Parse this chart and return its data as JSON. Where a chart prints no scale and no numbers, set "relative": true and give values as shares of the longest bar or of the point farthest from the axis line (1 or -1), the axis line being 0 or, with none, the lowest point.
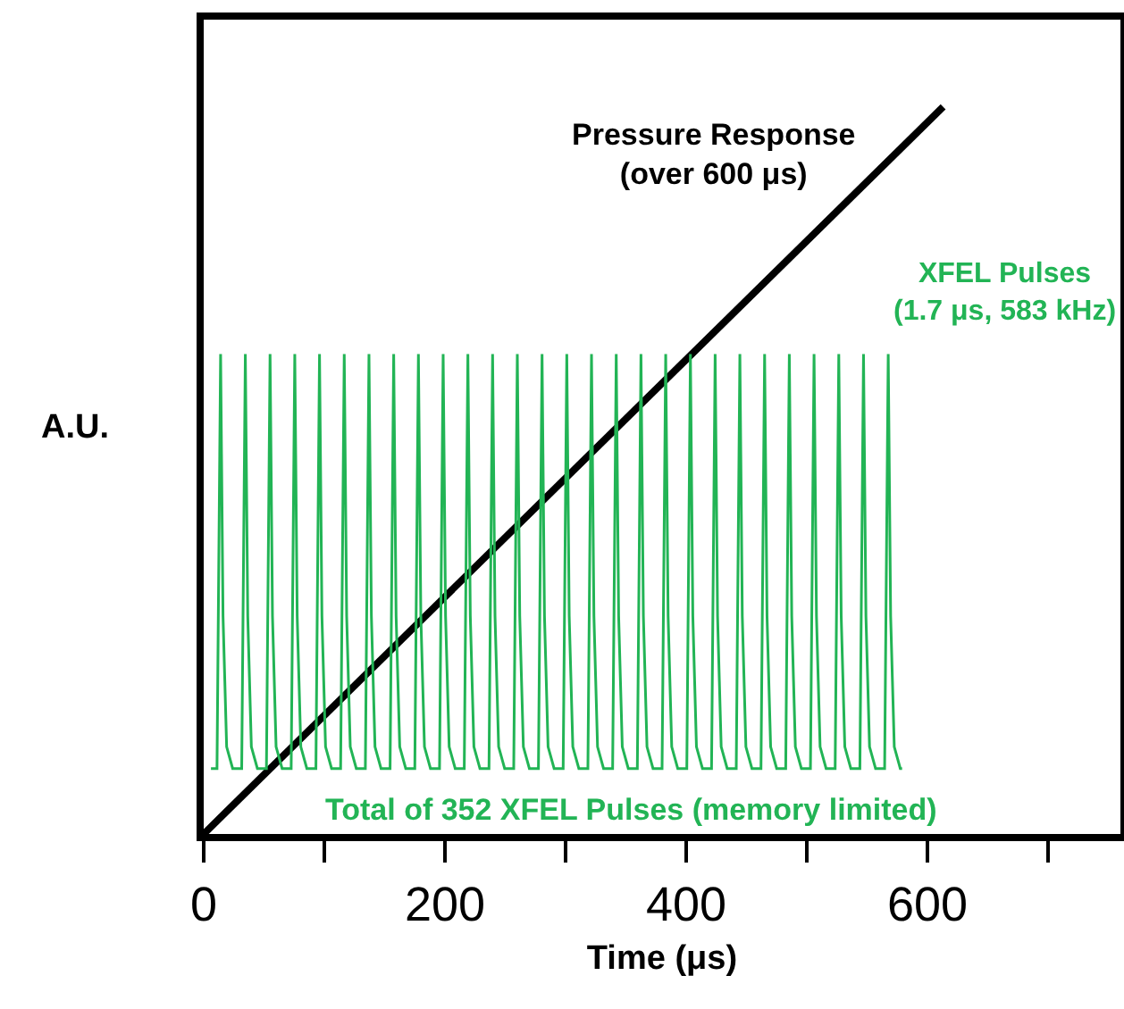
{
  "chart_data": {
    "type": "line",
    "relative": true,
    "xlabel": "Time (μs)",
    "ylabel": "A.U.",
    "xlim": [
      0,
      760
    ],
    "xticks": [
      0,
      {
        "value": 100,
        "label": null
      },
      200,
      {
        "value": 300,
        "label": null
      },
      400,
      {
        "value": 500,
        "label": null
      },
      600,
      {
        "value": 700,
        "label": null
      }
    ],
    "series": [
      {
        "name": "Pressure Response\n(over 600 μs)",
        "color": "#000000",
        "x": [
          0,
          613
        ],
        "values": [
          0,
          1
        ]
      },
      {
        "name": "XFEL Pulses\n(1.7 μs, 583 kHz)",
        "color": "#22b455",
        "x": [
          6,
          11,
          14,
          16,
          19,
          24,
          31.5,
          34.5,
          36.5,
          39.5,
          44.5,
          52,
          55,
          57,
          60,
          65,
          72.5,
          75.5,
          77.5,
          80.5,
          85.5,
          93,
          96,
          98,
          101,
          106,
          113.5,
          116.5,
          118.5,
          121.5,
          126.5,
          134,
          137,
          139,
          142,
          147,
          154.5,
          157.5,
          159.5,
          162.5,
          167.5,
          175,
          178,
          180,
          183,
          188,
          195.5,
          198.5,
          200.5,
          203.5,
          208.5,
          216,
          219,
          221,
          224,
          229,
          236.5,
          239.5,
          241.5,
          244.5,
          249.5,
          257,
          260,
          262,
          265,
          270,
          277.5,
          280.5,
          282.5,
          285.5,
          290.5,
          298,
          301,
          303,
          306,
          311,
          318.5,
          321.5,
          323.5,
          326.5,
          331.5,
          339,
          342,
          344,
          347,
          352,
          359.5,
          362.5,
          364.5,
          367.5,
          372.5,
          380,
          383,
          385,
          388,
          393,
          400.5,
          403.5,
          405.5,
          408.5,
          413.5,
          421,
          424,
          426,
          429,
          434,
          441.5,
          444.5,
          446.5,
          449.5,
          454.5,
          462,
          465,
          467,
          470,
          475,
          482.5,
          485.5,
          487.5,
          490.5,
          495.5,
          503,
          506,
          508,
          511,
          516,
          523.5,
          526.5,
          528.5,
          531.5,
          536.5,
          544,
          547,
          549,
          552,
          557,
          564.5,
          567.5,
          569.5,
          572.5,
          577.5,
          579
        ],
        "values": [
          0.09,
          0.09,
          0.66,
          0.3,
          0.12,
          0.09,
          0.09,
          0.66,
          0.3,
          0.12,
          0.09,
          0.09,
          0.66,
          0.3,
          0.12,
          0.09,
          0.09,
          0.66,
          0.3,
          0.12,
          0.09,
          0.09,
          0.66,
          0.3,
          0.12,
          0.09,
          0.09,
          0.66,
          0.3,
          0.12,
          0.09,
          0.09,
          0.66,
          0.3,
          0.12,
          0.09,
          0.09,
          0.66,
          0.3,
          0.12,
          0.09,
          0.09,
          0.66,
          0.3,
          0.12,
          0.09,
          0.09,
          0.66,
          0.3,
          0.12,
          0.09,
          0.09,
          0.66,
          0.3,
          0.12,
          0.09,
          0.09,
          0.66,
          0.3,
          0.12,
          0.09,
          0.09,
          0.66,
          0.3,
          0.12,
          0.09,
          0.09,
          0.66,
          0.3,
          0.12,
          0.09,
          0.09,
          0.66,
          0.3,
          0.12,
          0.09,
          0.09,
          0.66,
          0.3,
          0.12,
          0.09,
          0.09,
          0.66,
          0.3,
          0.12,
          0.09,
          0.09,
          0.66,
          0.3,
          0.12,
          0.09,
          0.09,
          0.66,
          0.3,
          0.12,
          0.09,
          0.09,
          0.66,
          0.3,
          0.12,
          0.09,
          0.09,
          0.66,
          0.3,
          0.12,
          0.09,
          0.09,
          0.66,
          0.3,
          0.12,
          0.09,
          0.09,
          0.66,
          0.3,
          0.12,
          0.09,
          0.09,
          0.66,
          0.3,
          0.12,
          0.09,
          0.09,
          0.66,
          0.3,
          0.12,
          0.09,
          0.09,
          0.66,
          0.3,
          0.12,
          0.09,
          0.09,
          0.66,
          0.3,
          0.12,
          0.09,
          0.09,
          0.66,
          0.3,
          0.12,
          0.09,
          0.09
        ]
      }
    ],
    "annotations": [
      "Total of 352 XFEL Pulses (memory limited)"
    ],
    "grid": false,
    "legend": false,
    "marker": "none",
    "line_style": "solid"
  }
}
